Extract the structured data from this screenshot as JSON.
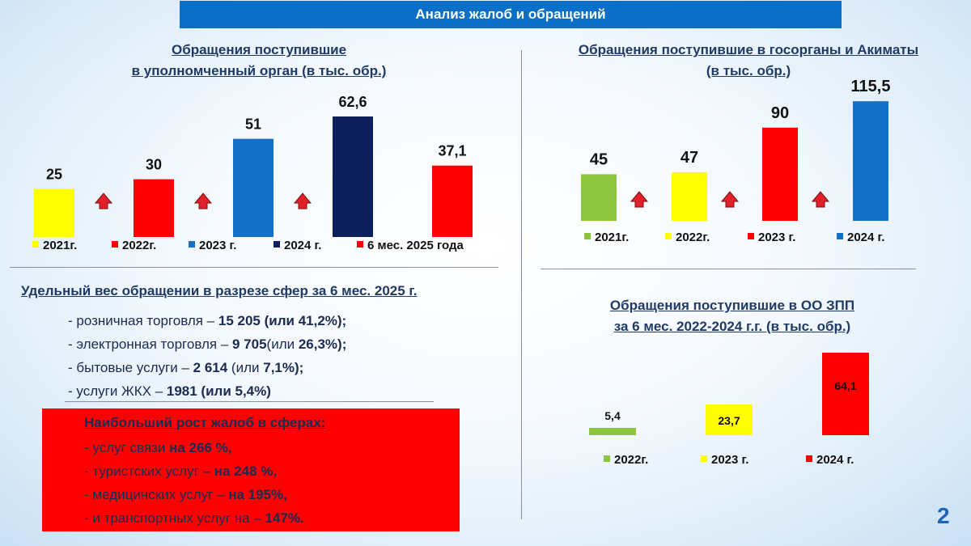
{
  "header": {
    "title": "Анализ жалоб и обращений"
  },
  "charts": [
    {
      "id": "chart-upolnomochenny",
      "type": "bar",
      "title_line1": "Обращения поступившие",
      "title_line2": "в уполномченный орган (в тыс. обр.)",
      "categories": [
        "2021г.",
        "2022г.",
        "2023 г.",
        "2024 г.",
        "6 мес. 2025 года"
      ],
      "values": [
        25,
        30,
        51,
        62.6,
        37.1
      ],
      "value_labels": [
        "25",
        "30",
        "51",
        "62,6",
        "37,1"
      ],
      "colors": [
        "#ffff00",
        "#ff0000",
        "#1271c7",
        "#0e1f5e",
        "#ff0000"
      ],
      "arrow_color": "#e0202a",
      "legend_position": "bottom"
    },
    {
      "id": "chart-gosorgany",
      "type": "bar",
      "title_line1": "Обращения поступившие в госорганы и Акиматы",
      "title_line2": "(в тыс. обр.)",
      "categories": [
        "2021г.",
        "2022г.",
        "2023 г.",
        "2024 г."
      ],
      "values": [
        45,
        47,
        90,
        115.5
      ],
      "value_labels": [
        "45",
        "47",
        "90",
        "115,5"
      ],
      "colors": [
        "#8cc63f",
        "#ffff00",
        "#ff0000",
        "#1271c7"
      ],
      "arrow_color": "#e0202a",
      "legend_position": "bottom"
    },
    {
      "id": "chart-oozpp",
      "type": "bar",
      "title_line1": "Обращения поступившие в ОО ЗПП",
      "title_line2": "за 6 мес. 2022-2024 г.г. (в тыс. обр.)",
      "categories": [
        "2022г.",
        "2023 г.",
        "2024 г."
      ],
      "values": [
        5.4,
        23.7,
        64.1
      ],
      "value_labels": [
        "5,4",
        "23,7",
        "64,1"
      ],
      "colors": [
        "#8cc63f",
        "#ffff00",
        "#ff0000"
      ],
      "legend_position": "bottom"
    }
  ],
  "chart_data": [
    {
      "type": "bar",
      "title": "Обращения поступившие в уполномченный орган (в тыс. обр.)",
      "categories": [
        "2021г.",
        "2022г.",
        "2023 г.",
        "2024 г.",
        "6 мес. 2025 года"
      ],
      "values": [
        25,
        30,
        51,
        62.6,
        37.1
      ],
      "legend": "bottom"
    },
    {
      "type": "bar",
      "title": "Обращения поступившие в госорганы и Акиматы (в тыс. обр.)",
      "categories": [
        "2021г.",
        "2022г.",
        "2023 г.",
        "2024 г."
      ],
      "values": [
        45,
        47,
        90,
        115.5
      ],
      "legend": "bottom"
    },
    {
      "type": "bar",
      "title": "Обращения поступившие в ОО ЗПП за 6 мес. 2022-2024 г.г. (в тыс. обр.)",
      "categories": [
        "2022г.",
        "2023 г.",
        "2024 г."
      ],
      "values": [
        5.4,
        23.7,
        64.1
      ],
      "legend": "bottom"
    }
  ],
  "share": {
    "title": "Удельный вес обращении в разрезе сфер за 6 мес. 2025 г.",
    "items": [
      {
        "pre": "- розничная торговля – ",
        "bold": "15 205",
        "mid": " ",
        "bold2": "(или 41,2%);"
      },
      {
        "pre": "- электронная торговля – ",
        "bold": "9 705",
        "mid": "(или ",
        "bold2": "26,3%);"
      },
      {
        "pre": "- бытовые услуги – ",
        "bold": "2 614",
        "mid": "  (или ",
        "bold2": "7,1%);"
      },
      {
        "pre": "- услуги ЖКХ – ",
        "bold": "1981 (или 5,4%)",
        "mid": "",
        "bold2": ""
      }
    ]
  },
  "growth": {
    "title": "Наибольший рост жалоб в сферах:",
    "items": [
      {
        "pre": "- услуг связи ",
        "bold": "на 266 %,"
      },
      {
        "pre": "- туристских услуг ",
        "bold": "– на 248 %,"
      },
      {
        "pre": "- медицинских услуг – ",
        "bold": "на 195%,"
      },
      {
        "pre": "- и транспортных услуг на – ",
        "bold": "147%."
      }
    ]
  },
  "page_number": "2"
}
